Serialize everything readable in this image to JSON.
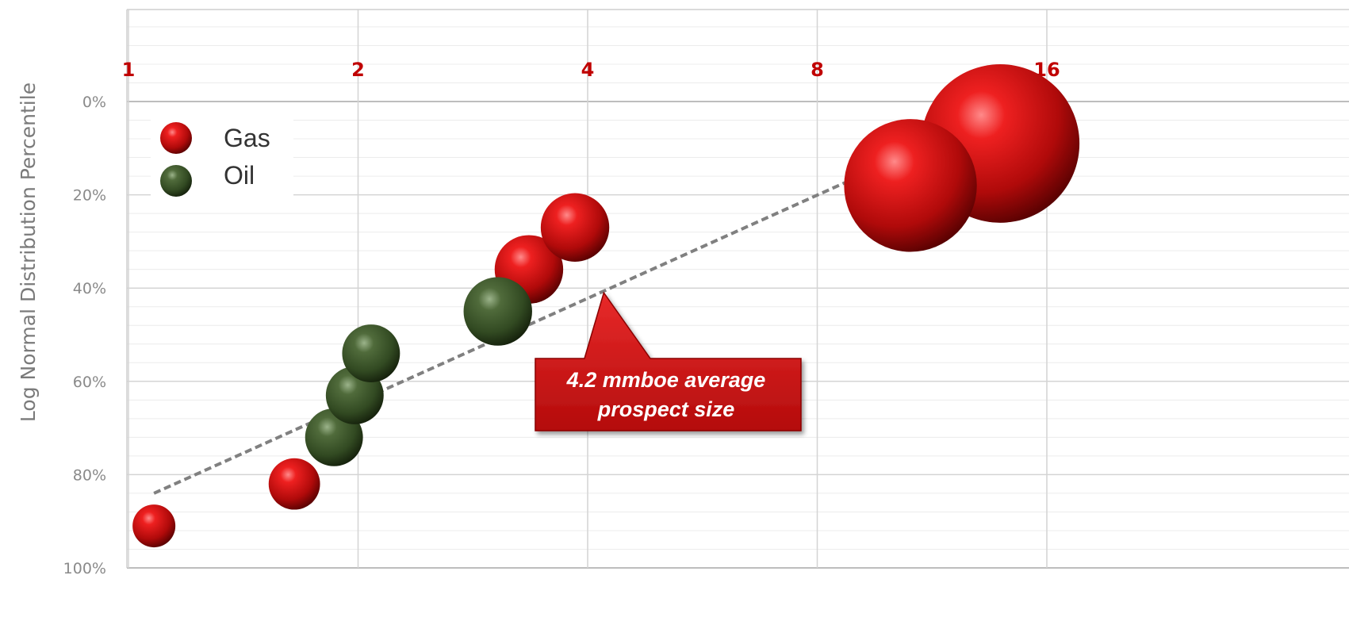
{
  "chart_data": {
    "type": "scatter",
    "subtype": "bubble",
    "xlabel": "",
    "ylabel": "Log Normal Distribution  Percentile",
    "x_scale": "log2",
    "x_axis_position": "top",
    "x_ticks": [
      "1",
      "2",
      "4",
      "8",
      "16"
    ],
    "y_ticks": [
      "0%",
      "20%",
      "40%",
      "60%",
      "80%",
      "100%"
    ],
    "y_reversed": true,
    "xlim": [
      1,
      38
    ],
    "ylim": [
      0,
      100
    ],
    "grid": true,
    "legend_position": "top-left",
    "colors": {
      "Gas": "#cc1111",
      "Oil": "#3f5a2a",
      "trend": "#808080",
      "callout": "#d01818",
      "tick_x": "#c00000"
    },
    "series": [
      {
        "name": "Gas",
        "points": [
          {
            "x": 1.08,
            "y": 91,
            "size": 1.0
          },
          {
            "x": 1.65,
            "y": 82,
            "size": 1.2
          },
          {
            "x": 3.35,
            "y": 36,
            "size": 1.6
          },
          {
            "x": 3.85,
            "y": 27,
            "size": 1.6
          },
          {
            "x": 10.6,
            "y": 18,
            "size": 3.1
          },
          {
            "x": 13.9,
            "y": 9,
            "size": 3.7
          }
        ]
      },
      {
        "name": "Oil",
        "points": [
          {
            "x": 1.86,
            "y": 72,
            "size": 1.35
          },
          {
            "x": 1.98,
            "y": 63,
            "size": 1.35
          },
          {
            "x": 2.08,
            "y": 54,
            "size": 1.35
          },
          {
            "x": 3.05,
            "y": 45,
            "size": 1.6
          }
        ]
      }
    ],
    "trendline": {
      "x1": 1.08,
      "y1": 84,
      "x2": 15.0,
      "y2": 0
    },
    "annotation": {
      "line1": "4.2 mmboe average",
      "line2": "prospect size",
      "x": 4.2,
      "y": 41
    }
  }
}
